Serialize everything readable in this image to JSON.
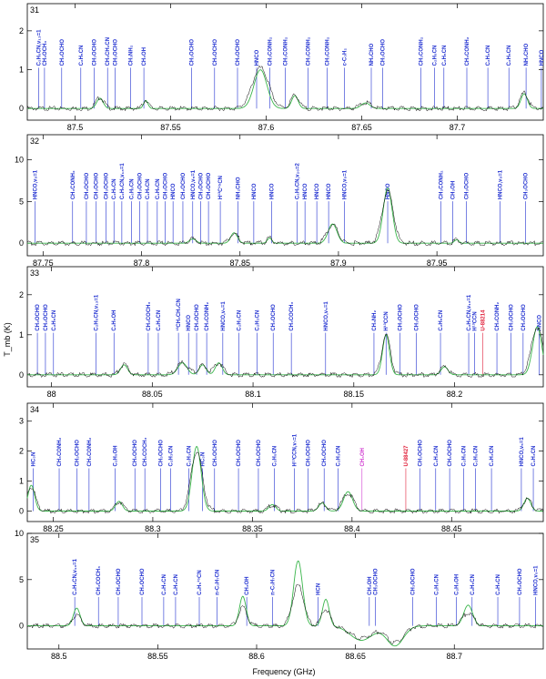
{
  "figure": {
    "xlabel": "Frequency (GHz)",
    "ylabel": "T_mb (K)"
  },
  "colors": {
    "observed": "#000000",
    "model": "#39b54a",
    "line_marker": "#1f2fd0",
    "unidentified": "#e0203a",
    "highlight": "#d03bd0"
  },
  "chart_data": [
    {
      "type": "line",
      "panel": "31",
      "xlim": [
        87.475,
        87.745
      ],
      "ylim": [
        -0.3,
        2.7
      ],
      "xticks": [
        87.5,
        87.55,
        87.6,
        87.65,
        87.7
      ],
      "yticks": [
        0,
        1,
        2
      ],
      "peaks": [
        [
          87.513,
          0.28,
          0.003
        ],
        [
          87.537,
          0.22,
          0.002
        ],
        [
          87.597,
          1.05,
          0.006
        ],
        [
          87.615,
          0.35,
          0.003
        ],
        [
          87.652,
          0.15,
          0.004
        ],
        [
          87.735,
          0.4,
          0.003
        ]
      ],
      "model_scale": 0.95,
      "lines": [
        {
          "f": 87.481,
          "label": "C₂H₅CN,v₁₃=1"
        },
        {
          "f": 87.484,
          "label": "CH₃OCH₃"
        },
        {
          "f": 87.493,
          "label": "CH₃OCHO"
        },
        {
          "f": 87.503,
          "label": "C₂H₅CN"
        },
        {
          "f": 87.51,
          "label": "CH₃OCHO"
        },
        {
          "f": 87.517,
          "label": "CH₃CH₂CN"
        },
        {
          "f": 87.521,
          "label": "CH₃OCHO"
        },
        {
          "f": 87.529,
          "label": "CH₃NH₂"
        },
        {
          "f": 87.536,
          "label": "CH₃OH"
        },
        {
          "f": 87.561,
          "label": "CH₃OCHO"
        },
        {
          "f": 87.573,
          "label": "CH₃OCHO"
        },
        {
          "f": 87.585,
          "label": "CH₃OCHO"
        },
        {
          "f": 87.595,
          "label": "HNCO"
        },
        {
          "f": 87.602,
          "label": "CH₃CONH₂"
        },
        {
          "f": 87.61,
          "label": "CH₃CONH₂"
        },
        {
          "f": 87.622,
          "label": "CH₃CONH₂"
        },
        {
          "f": 87.632,
          "label": "CH₃CONH₂"
        },
        {
          "f": 87.641,
          "label": "c-C₃H₂"
        },
        {
          "f": 87.655,
          "label": "NH₂CHO"
        },
        {
          "f": 87.661,
          "label": "CH₃OCHO"
        },
        {
          "f": 87.681,
          "label": "CH₃CONH₂"
        },
        {
          "f": 87.688,
          "label": "C₂H₅CN"
        },
        {
          "f": 87.693,
          "label": "C₂H₅CN"
        },
        {
          "f": 87.705,
          "label": "CH₃CONH₂"
        },
        {
          "f": 87.716,
          "label": "C₂H₃CN"
        },
        {
          "f": 87.727,
          "label": "C₂H₅CN"
        },
        {
          "f": 87.736,
          "label": "NH₂CHO"
        },
        {
          "f": 87.744,
          "label": "HNCO"
        }
      ]
    },
    {
      "type": "line",
      "panel": "32",
      "xlim": [
        87.742,
        88.004
      ],
      "ylim": [
        -1.5,
        13
      ],
      "xticks": [
        87.75,
        87.8,
        87.85,
        87.9,
        87.95
      ],
      "yticks": [
        0,
        5,
        10
      ],
      "peaks": [
        [
          87.826,
          0.5,
          0.003
        ],
        [
          87.847,
          1.2,
          0.003
        ],
        [
          87.865,
          0.6,
          0.002
        ],
        [
          87.897,
          2.2,
          0.004
        ],
        [
          87.925,
          6.3,
          0.004
        ],
        [
          87.96,
          0.4,
          0.002
        ]
      ],
      "model_scale": 1.05,
      "lines": [
        {
          "f": 87.746,
          "label": "HNCO,v₅=1"
        },
        {
          "f": 87.765,
          "label": "CH₃CONH₂"
        },
        {
          "f": 87.772,
          "label": "CH₃OCHO"
        },
        {
          "f": 87.777,
          "label": "CH₃OCHO"
        },
        {
          "f": 87.782,
          "label": "CH₃OCHO"
        },
        {
          "f": 87.786,
          "label": "C₂H₅CN"
        },
        {
          "f": 87.79,
          "label": "C₂H₅CN,v₁₃=1"
        },
        {
          "f": 87.795,
          "label": "C₂H₅CN"
        },
        {
          "f": 87.799,
          "label": "CH₃OCHO"
        },
        {
          "f": 87.803,
          "label": "C₂H₅CN"
        },
        {
          "f": 87.808,
          "label": "C₂H₅CN"
        },
        {
          "f": 87.812,
          "label": "CH₃OCHO"
        },
        {
          "f": 87.816,
          "label": "HNCO"
        },
        {
          "f": 87.821,
          "label": "CH₃OCHO"
        },
        {
          "f": 87.826,
          "label": "HNCO,v₅=1"
        },
        {
          "f": 87.83,
          "label": "CH₃OCHO"
        },
        {
          "f": 87.834,
          "label": "CH₃OCHO"
        },
        {
          "f": 87.84,
          "label": "H¹³C¹⁵CN"
        },
        {
          "f": 87.849,
          "label": "NH₂CHO"
        },
        {
          "f": 87.857,
          "label": "HNCO"
        },
        {
          "f": 87.866,
          "label": "HNCO"
        },
        {
          "f": 87.879,
          "label": "C₂H₅CN,v₂₀=2"
        },
        {
          "f": 87.883,
          "label": "HNCO"
        },
        {
          "f": 87.889,
          "label": "HNCO"
        },
        {
          "f": 87.895,
          "label": "HNCO"
        },
        {
          "f": 87.903,
          "label": "HNCO,v₅=1"
        },
        {
          "f": 87.925,
          "label": "HNCO"
        },
        {
          "f": 87.952,
          "label": "CH₃CONH₂"
        },
        {
          "f": 87.958,
          "label": "CH₃OH"
        },
        {
          "f": 87.965,
          "label": "CH₃OCHO"
        },
        {
          "f": 87.982,
          "label": "HNCO,v₅=1"
        },
        {
          "f": 87.995,
          "label": "CH₃OCHO"
        }
      ]
    },
    {
      "type": "line",
      "panel": "33",
      "xlim": [
        87.988,
        88.244
      ],
      "ylim": [
        -0.3,
        2.7
      ],
      "xticks": [
        88.0,
        88.05,
        88.1,
        88.15,
        88.2
      ],
      "yticks": [
        0,
        1,
        2
      ],
      "peaks": [
        [
          88.036,
          0.25,
          0.003
        ],
        [
          88.065,
          0.3,
          0.004
        ],
        [
          88.075,
          0.25,
          0.003
        ],
        [
          88.083,
          0.3,
          0.003
        ],
        [
          88.166,
          1.0,
          0.003
        ],
        [
          88.195,
          0.2,
          0.003
        ],
        [
          88.241,
          1.2,
          0.004
        ]
      ],
      "model_scale": 1.0,
      "lines": [
        {
          "f": 87.993,
          "label": "CH₃OCHO"
        },
        {
          "f": 87.997,
          "label": "CH₃OCHO"
        },
        {
          "f": 88.001,
          "label": "C₂H₅CN"
        },
        {
          "f": 88.022,
          "label": "C₂H₅CN,v₁₃=1"
        },
        {
          "f": 88.031,
          "label": "C₂H₅OH"
        },
        {
          "f": 88.048,
          "label": "CH₃COCH₃"
        },
        {
          "f": 88.053,
          "label": "C₂H₅CN"
        },
        {
          "f": 88.063,
          "label": "¹³CH₃CH₂CN"
        },
        {
          "f": 88.068,
          "label": "HNCO"
        },
        {
          "f": 88.072,
          "label": "CH₃OCHO"
        },
        {
          "f": 88.077,
          "label": "CH₃CONH₂"
        },
        {
          "f": 88.085,
          "label": "HNCO,v₅=1"
        },
        {
          "f": 88.093,
          "label": "C₂H₃CN"
        },
        {
          "f": 88.102,
          "label": "C₂H₃CN"
        },
        {
          "f": 88.11,
          "label": "CH₃OCHO"
        },
        {
          "f": 88.119,
          "label": "CH₃COCH₃"
        },
        {
          "f": 88.136,
          "label": "HNCO,v₅=1"
        },
        {
          "f": 88.16,
          "label": "CH₃NH₂"
        },
        {
          "f": 88.166,
          "label": "H¹³CCN"
        },
        {
          "f": 88.173,
          "label": "CH₃OCHO"
        },
        {
          "f": 88.181,
          "label": "CH₃OCHO"
        },
        {
          "f": 88.193,
          "label": "C₂H₅CN"
        },
        {
          "f": 88.207,
          "label": "C₂H₅CN,v₁₃=1"
        },
        {
          "f": 88.21,
          "label": "H¹³CCN"
        },
        {
          "f": 88.214,
          "label": "U-88214",
          "kind": "unidentified"
        },
        {
          "f": 88.221,
          "label": "CH₃CONH₂"
        },
        {
          "f": 88.228,
          "label": "CH₃OCHO"
        },
        {
          "f": 88.234,
          "label": "CH₃OCHO"
        },
        {
          "f": 88.242,
          "label": "HNCO"
        }
      ]
    },
    {
      "type": "line",
      "panel": "34",
      "xlim": [
        88.237,
        88.496
      ],
      "ylim": [
        -0.35,
        3.6
      ],
      "xticks": [
        88.25,
        88.3,
        88.35,
        88.4,
        88.45
      ],
      "yticks": [
        0,
        1,
        2,
        3
      ],
      "peaks": [
        [
          88.239,
          0.8,
          0.003
        ],
        [
          88.283,
          0.3,
          0.003
        ],
        [
          88.322,
          2.0,
          0.004
        ],
        [
          88.36,
          0.2,
          0.003
        ],
        [
          88.385,
          0.25,
          0.003
        ],
        [
          88.398,
          0.6,
          0.004
        ],
        [
          88.488,
          0.4,
          0.003
        ]
      ],
      "model_scale": 1.08,
      "lines": [
        {
          "f": 88.24,
          "label": "HC₃N"
        },
        {
          "f": 88.253,
          "label": "CH₃CONH₂"
        },
        {
          "f": 88.262,
          "label": "CH₃OCHO"
        },
        {
          "f": 88.268,
          "label": "CH₃CONH₂"
        },
        {
          "f": 88.281,
          "label": "C₂H₅OH"
        },
        {
          "f": 88.291,
          "label": "CH₃OCHO"
        },
        {
          "f": 88.296,
          "label": "CH₃COCH₃"
        },
        {
          "f": 88.304,
          "label": "CH₃OCHO"
        },
        {
          "f": 88.309,
          "label": "C₂H₃CN"
        },
        {
          "f": 88.318,
          "label": "C₂H₃CN"
        },
        {
          "f": 88.325,
          "label": "HC₃N"
        },
        {
          "f": 88.331,
          "label": "CH₃OCHO"
        },
        {
          "f": 88.343,
          "label": "CH₃OCHO"
        },
        {
          "f": 88.353,
          "label": "CH₃OCHO"
        },
        {
          "f": 88.361,
          "label": "C₂H₅CN"
        },
        {
          "f": 88.371,
          "label": "H¹³CCN,v₇=1"
        },
        {
          "f": 88.378,
          "label": "CH₃OCHO"
        },
        {
          "f": 88.386,
          "label": "CH₃OCHO"
        },
        {
          "f": 88.393,
          "label": "C₂H₃CN"
        },
        {
          "f": 88.405,
          "label": "CH₃OH",
          "kind": "highlight"
        },
        {
          "f": 88.427,
          "label": "U-88427",
          "kind": "unidentified"
        },
        {
          "f": 88.434,
          "label": "CH₃OCHO"
        },
        {
          "f": 88.442,
          "label": "C₂H₃CN"
        },
        {
          "f": 88.449,
          "label": "CH₃OCHO"
        },
        {
          "f": 88.456,
          "label": "C₂H₅CN"
        },
        {
          "f": 88.462,
          "label": "C₂H₅CN"
        },
        {
          "f": 88.47,
          "label": "C₂H₃CN"
        },
        {
          "f": 88.485,
          "label": "HNCO,v₅=1"
        },
        {
          "f": 88.491,
          "label": "C₂H₃CN"
        }
      ]
    },
    {
      "type": "line",
      "panel": "35",
      "xlim": [
        88.484,
        88.745
      ],
      "ylim": [
        -2.5,
        10
      ],
      "xticks": [
        88.5,
        88.55,
        88.6,
        88.65,
        88.7
      ],
      "yticks": [
        0,
        5,
        10
      ],
      "peaks": [
        [
          88.509,
          1.2,
          0.003
        ],
        [
          88.593,
          2.0,
          0.003
        ],
        [
          88.621,
          4.4,
          0.004
        ],
        [
          88.635,
          1.8,
          0.003
        ],
        [
          88.707,
          1.4,
          0.004
        ]
      ],
      "dips": [
        [
          88.653,
          -1.3,
          0.008
        ],
        [
          88.67,
          -1.8,
          0.006
        ]
      ],
      "model_scale": 1.6,
      "lines": [
        {
          "f": 88.508,
          "label": "C₂H₅CN,v₁₃=1"
        },
        {
          "f": 88.52,
          "label": "CH₃COCH₃"
        },
        {
          "f": 88.53,
          "label": "CH₃OCHO"
        },
        {
          "f": 88.542,
          "label": "CH₃OCHO"
        },
        {
          "f": 88.553,
          "label": "C₂H₅CN"
        },
        {
          "f": 88.559,
          "label": "C₂H₅CN"
        },
        {
          "f": 88.571,
          "label": "C₂H₅¹⁵CN"
        },
        {
          "f": 88.58,
          "label": "n-C₃H₇CN"
        },
        {
          "f": 88.595,
          "label": "CH₃OH"
        },
        {
          "f": 88.608,
          "label": "n-C₃H₇CN"
        },
        {
          "f": 88.631,
          "label": "HCN"
        },
        {
          "f": 88.657,
          "label": "CH₃OH"
        },
        {
          "f": 88.66,
          "label": "CH₃OCHO"
        },
        {
          "f": 88.679,
          "label": "CH₃OCHO"
        },
        {
          "f": 88.691,
          "label": "C₂H₅CN"
        },
        {
          "f": 88.701,
          "label": "C₂H₅OH"
        },
        {
          "f": 88.709,
          "label": "C₂H₅CN"
        },
        {
          "f": 88.722,
          "label": "C₂H₅CN"
        },
        {
          "f": 88.733,
          "label": "CH₃OCHO"
        },
        {
          "f": 88.741,
          "label": "HNCO,v₅=1"
        }
      ]
    }
  ]
}
